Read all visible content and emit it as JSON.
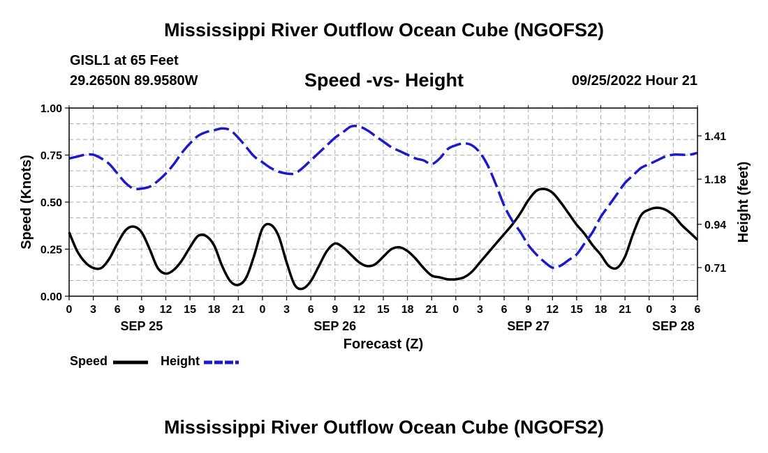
{
  "header": {
    "title": "Mississippi River Outflow Ocean Cube (NGOFS2)",
    "station": "GISL1 at 65 Feet",
    "coordinates": "29.2650N  89.9580W",
    "subtitle": "Speed -vs- Height",
    "datetime": "09/25/2022 Hour 21"
  },
  "footer": {
    "title": "Mississippi River Outflow Ocean Cube (NGOFS2)"
  },
  "legend": {
    "speed_label": "Speed",
    "height_label": "Height"
  },
  "colors": {
    "speed": "#000000",
    "height": "#1a1acc",
    "grid": "#aaaaaa"
  },
  "chart_data": {
    "type": "line",
    "xlabel": "Forecast (Z)",
    "ylabel": "Speed (Knots)",
    "y2label": "Height (feet)",
    "xlim": [
      0,
      78
    ],
    "ylim": [
      0,
      1
    ],
    "y2lim": [
      0.558,
      1.558
    ],
    "x_ticks": [
      0,
      3,
      6,
      9,
      12,
      15,
      18,
      21,
      24,
      27,
      30,
      33,
      36,
      39,
      42,
      45,
      48,
      51,
      54,
      57,
      60,
      63,
      66,
      69,
      72,
      75,
      78
    ],
    "x_tick_labels": [
      "0",
      "3",
      "6",
      "9",
      "12",
      "15",
      "18",
      "21",
      "0",
      "3",
      "6",
      "9",
      "12",
      "15",
      "18",
      "21",
      "0",
      "3",
      "6",
      "9",
      "12",
      "15",
      "18",
      "21",
      "0",
      "3",
      "6"
    ],
    "y_ticks": [
      0,
      0.25,
      0.5,
      0.75,
      1.0
    ],
    "y_tick_labels": [
      "0.00",
      "0.25",
      "0.50",
      "0.75",
      "1.00"
    ],
    "y2_ticks": [
      0.71,
      0.94,
      1.18,
      1.41
    ],
    "y2_tick_labels": [
      "0.71",
      "0.94",
      "1.18",
      "1.41"
    ],
    "date_labels": [
      {
        "x": 9,
        "label": "SEP 25"
      },
      {
        "x": 33,
        "label": "SEP 26"
      },
      {
        "x": 57,
        "label": "SEP 27"
      },
      {
        "x": 75,
        "label": "SEP 28"
      }
    ],
    "series": [
      {
        "name": "Speed",
        "axis": "left",
        "style": "solid",
        "x": [
          0,
          1,
          2,
          3,
          4,
          5,
          6,
          7,
          8,
          9,
          10,
          11,
          12,
          13,
          14,
          15,
          16,
          17,
          18,
          19,
          20,
          21,
          22,
          23,
          24,
          25,
          26,
          27,
          28,
          29,
          30,
          31,
          32,
          33,
          34,
          35,
          36,
          37,
          38,
          39,
          40,
          41,
          42,
          43,
          44,
          45,
          46,
          47,
          48,
          49,
          50,
          51,
          52,
          53,
          54,
          55,
          56,
          57,
          58,
          59,
          60,
          61,
          62,
          63,
          64,
          65,
          66,
          67,
          68,
          69,
          70,
          71,
          72,
          73,
          74,
          75,
          76,
          77,
          78
        ],
        "values": [
          0.34,
          0.24,
          0.18,
          0.15,
          0.15,
          0.2,
          0.28,
          0.35,
          0.37,
          0.34,
          0.25,
          0.15,
          0.12,
          0.14,
          0.19,
          0.26,
          0.32,
          0.32,
          0.27,
          0.16,
          0.08,
          0.06,
          0.1,
          0.22,
          0.36,
          0.38,
          0.32,
          0.18,
          0.06,
          0.04,
          0.08,
          0.16,
          0.24,
          0.28,
          0.26,
          0.22,
          0.18,
          0.16,
          0.17,
          0.21,
          0.25,
          0.26,
          0.24,
          0.2,
          0.15,
          0.11,
          0.1,
          0.09,
          0.09,
          0.1,
          0.13,
          0.18,
          0.23,
          0.28,
          0.33,
          0.38,
          0.44,
          0.51,
          0.56,
          0.57,
          0.55,
          0.5,
          0.44,
          0.38,
          0.33,
          0.27,
          0.22,
          0.16,
          0.15,
          0.21,
          0.33,
          0.43,
          0.46,
          0.47,
          0.46,
          0.43,
          0.38,
          0.34,
          0.3
        ]
      },
      {
        "name": "Height",
        "axis": "right",
        "style": "dashed",
        "x": [
          0,
          1,
          2,
          3,
          4,
          5,
          6,
          7,
          8,
          9,
          10,
          11,
          12,
          13,
          14,
          15,
          16,
          17,
          18,
          19,
          20,
          21,
          22,
          23,
          24,
          25,
          26,
          27,
          28,
          29,
          30,
          31,
          32,
          33,
          34,
          35,
          36,
          37,
          38,
          39,
          40,
          41,
          42,
          43,
          44,
          45,
          46,
          47,
          48,
          49,
          50,
          51,
          52,
          53,
          54,
          55,
          56,
          57,
          58,
          59,
          60,
          61,
          62,
          63,
          64,
          65,
          66,
          67,
          68,
          69,
          70,
          71,
          72,
          73,
          74,
          75,
          76,
          77,
          78
        ],
        "values": [
          1.29,
          1.3,
          1.31,
          1.31,
          1.29,
          1.26,
          1.21,
          1.16,
          1.13,
          1.13,
          1.14,
          1.17,
          1.21,
          1.26,
          1.32,
          1.37,
          1.41,
          1.43,
          1.44,
          1.45,
          1.44,
          1.4,
          1.35,
          1.3,
          1.27,
          1.24,
          1.22,
          1.21,
          1.21,
          1.24,
          1.28,
          1.32,
          1.36,
          1.4,
          1.43,
          1.46,
          1.46,
          1.44,
          1.41,
          1.38,
          1.35,
          1.33,
          1.31,
          1.29,
          1.28,
          1.26,
          1.29,
          1.34,
          1.36,
          1.37,
          1.36,
          1.32,
          1.25,
          1.15,
          1.04,
          0.96,
          0.9,
          0.83,
          0.78,
          0.74,
          0.71,
          0.72,
          0.75,
          0.78,
          0.84,
          0.9,
          0.98,
          1.04,
          1.1,
          1.16,
          1.2,
          1.24,
          1.26,
          1.28,
          1.3,
          1.31,
          1.31,
          1.31,
          1.32
        ]
      }
    ]
  }
}
